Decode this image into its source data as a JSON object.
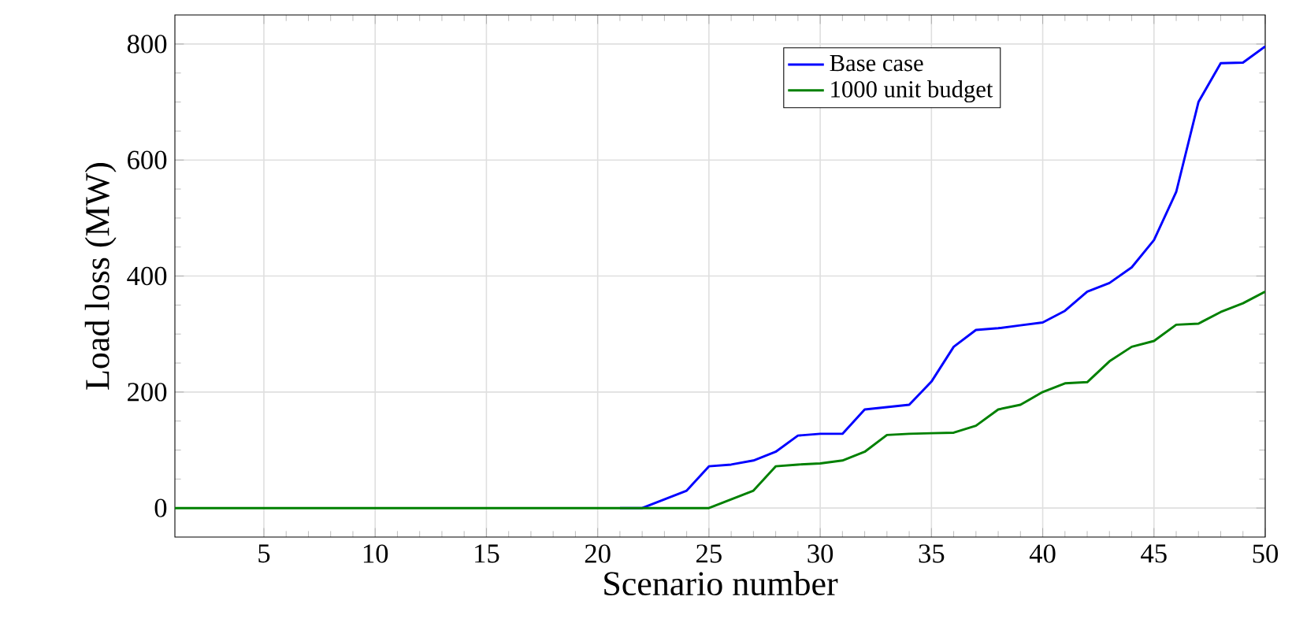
{
  "chart_data": {
    "type": "line",
    "xlabel": "Scenario number",
    "ylabel": "Load loss (MW)",
    "x": [
      1,
      2,
      3,
      4,
      5,
      6,
      7,
      8,
      9,
      10,
      11,
      12,
      13,
      14,
      15,
      16,
      17,
      18,
      19,
      20,
      21,
      22,
      23,
      24,
      25,
      26,
      27,
      28,
      29,
      30,
      31,
      32,
      33,
      34,
      35,
      36,
      37,
      38,
      39,
      40,
      41,
      42,
      43,
      44,
      45,
      46,
      47,
      48,
      49,
      50
    ],
    "series": [
      {
        "name": "Base case",
        "color": "#0000ff",
        "values": [
          null,
          null,
          null,
          null,
          null,
          null,
          null,
          null,
          null,
          null,
          null,
          null,
          null,
          null,
          null,
          null,
          null,
          null,
          null,
          null,
          0,
          0,
          15,
          30,
          72,
          75,
          82,
          97,
          125,
          128,
          128,
          170,
          174,
          178,
          218,
          278,
          307,
          310,
          315,
          320,
          340,
          373,
          388,
          415,
          462,
          545,
          700,
          767,
          768,
          796
        ]
      },
      {
        "name": "1000 unit budget",
        "color": "#008000",
        "values": [
          0,
          0,
          0,
          0,
          0,
          0,
          0,
          0,
          0,
          0,
          0,
          0,
          0,
          0,
          0,
          0,
          0,
          0,
          0,
          0,
          0,
          0,
          0,
          0,
          0,
          15,
          30,
          72,
          75,
          77,
          82,
          97,
          126,
          128,
          129,
          130,
          142,
          170,
          178,
          200,
          215,
          217,
          253,
          278,
          288,
          316,
          318,
          338,
          353,
          373
        ]
      }
    ],
    "xlim": [
      1,
      50
    ],
    "ylim": [
      -50,
      850
    ],
    "xticks": [
      5,
      10,
      15,
      20,
      25,
      30,
      35,
      40,
      45,
      50
    ],
    "yticks": [
      0,
      200,
      400,
      600,
      800
    ],
    "grid": true,
    "legend": "top right",
    "marker": "none",
    "line_style": "solid"
  }
}
